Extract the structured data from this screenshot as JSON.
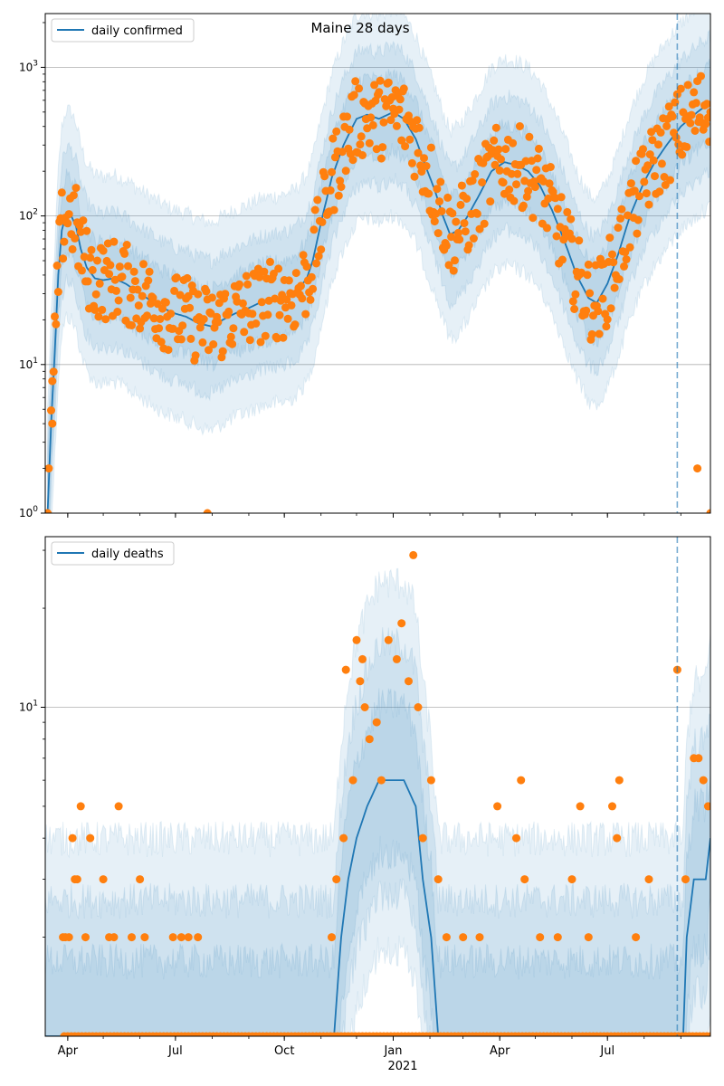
{
  "title": "Maine 28 days",
  "colors": {
    "line": "#1f77b4",
    "points": "#ff7f0e",
    "band": "#1f77b4",
    "grid": "#b0b0b0",
    "vline": "#1f77b4"
  },
  "x_axis": {
    "range": [
      "2020-03-13",
      "2021-09-26"
    ],
    "ticks": [
      {
        "date": "2020-04-01",
        "label": "Apr"
      },
      {
        "date": "2020-07-01",
        "label": "Jul"
      },
      {
        "date": "2020-10-01",
        "label": "Oct"
      },
      {
        "date": "2021-01-01",
        "label": "Jan"
      },
      {
        "date": "2021-04-01",
        "label": "Apr"
      },
      {
        "date": "2021-07-01",
        "label": "Jul"
      }
    ],
    "year_label": "2021",
    "forecast_start": "2021-08-29"
  },
  "chart_data": [
    {
      "type": "line",
      "scale": "log",
      "ylim": [
        1,
        2300
      ],
      "legend": "daily confirmed",
      "legend_loc": "top-left",
      "grid": true,
      "yticks": [
        {
          "value": 1,
          "label": "10^0"
        },
        {
          "value": 10,
          "label": "10^1"
        },
        {
          "value": 100,
          "label": "10^2"
        },
        {
          "value": 1000,
          "label": "10^3"
        }
      ],
      "line": [
        [
          "2020-03-15",
          1
        ],
        [
          "2020-03-18",
          4
        ],
        [
          "2020-03-21",
          12
        ],
        [
          "2020-03-24",
          40
        ],
        [
          "2020-03-27",
          80
        ],
        [
          "2020-03-31",
          105
        ],
        [
          "2020-04-04",
          100
        ],
        [
          "2020-04-08",
          85
        ],
        [
          "2020-04-12",
          60
        ],
        [
          "2020-04-17",
          45
        ],
        [
          "2020-04-24",
          38
        ],
        [
          "2020-05-01",
          37
        ],
        [
          "2020-05-10",
          38
        ],
        [
          "2020-05-20",
          35
        ],
        [
          "2020-06-01",
          30
        ],
        [
          "2020-06-10",
          27
        ],
        [
          "2020-06-20",
          24
        ],
        [
          "2020-07-01",
          22
        ],
        [
          "2020-07-10",
          21
        ],
        [
          "2020-07-20",
          19
        ],
        [
          "2020-08-01",
          18
        ],
        [
          "2020-08-10",
          20
        ],
        [
          "2020-08-20",
          22
        ],
        [
          "2020-09-01",
          24
        ],
        [
          "2020-09-10",
          26
        ],
        [
          "2020-09-20",
          27
        ],
        [
          "2020-10-01",
          28
        ],
        [
          "2020-10-10",
          30
        ],
        [
          "2020-10-20",
          38
        ],
        [
          "2020-10-25",
          50
        ],
        [
          "2020-11-01",
          90
        ],
        [
          "2020-11-10",
          180
        ],
        [
          "2020-11-20",
          300
        ],
        [
          "2020-12-01",
          450
        ],
        [
          "2020-12-10",
          480
        ],
        [
          "2020-12-20",
          450
        ],
        [
          "2021-01-01",
          500
        ],
        [
          "2021-01-10",
          450
        ],
        [
          "2021-01-20",
          330
        ],
        [
          "2021-01-28",
          220
        ],
        [
          "2021-02-05",
          150
        ],
        [
          "2021-02-12",
          100
        ],
        [
          "2021-02-18",
          75
        ],
        [
          "2021-02-25",
          80
        ],
        [
          "2021-03-05",
          100
        ],
        [
          "2021-03-15",
          140
        ],
        [
          "2021-03-25",
          200
        ],
        [
          "2021-04-05",
          230
        ],
        [
          "2021-04-15",
          220
        ],
        [
          "2021-04-25",
          200
        ],
        [
          "2021-05-05",
          160
        ],
        [
          "2021-05-15",
          110
        ],
        [
          "2021-05-25",
          70
        ],
        [
          "2021-06-05",
          40
        ],
        [
          "2021-06-15",
          28
        ],
        [
          "2021-06-22",
          26
        ],
        [
          "2021-07-01",
          35
        ],
        [
          "2021-07-10",
          55
        ],
        [
          "2021-07-20",
          100
        ],
        [
          "2021-08-01",
          170
        ],
        [
          "2021-08-10",
          230
        ],
        [
          "2021-08-20",
          300
        ],
        [
          "2021-09-01",
          400
        ],
        [
          "2021-09-15",
          500
        ],
        [
          "2021-09-26",
          580
        ]
      ],
      "bands": [
        {
          "lower_factor": 0.2,
          "upper_factor": 5
        },
        {
          "lower_factor": 0.35,
          "upper_factor": 2.8
        },
        {
          "lower_factor": 0.55,
          "upper_factor": 1.8
        }
      ],
      "outliers": [
        [
          "2020-03-15",
          1
        ],
        [
          "2020-03-16",
          2
        ],
        [
          "2020-03-19",
          4
        ],
        [
          "2020-07-28",
          1
        ],
        [
          "2021-09-15",
          2
        ],
        [
          "2021-09-26",
          1
        ]
      ]
    },
    {
      "type": "line",
      "scale": "log",
      "ylim": [
        1,
        33
      ],
      "legend": "daily deaths",
      "legend_loc": "top-left",
      "grid": true,
      "yticks": [
        {
          "value": 10,
          "label": "10^1"
        }
      ],
      "line": [
        [
          "2020-03-13",
          1
        ],
        [
          "2020-11-12",
          1
        ],
        [
          "2020-11-18",
          2
        ],
        [
          "2020-11-24",
          3
        ],
        [
          "2020-12-01",
          4
        ],
        [
          "2020-12-10",
          5
        ],
        [
          "2020-12-20",
          6
        ],
        [
          "2021-01-01",
          6
        ],
        [
          "2021-01-10",
          6
        ],
        [
          "2021-01-20",
          5
        ],
        [
          "2021-01-26",
          3
        ],
        [
          "2021-02-02",
          2
        ],
        [
          "2021-02-08",
          1
        ],
        [
          "2021-09-03",
          1
        ],
        [
          "2021-09-06",
          2
        ],
        [
          "2021-09-12",
          3
        ],
        [
          "2021-09-22",
          3
        ],
        [
          "2021-09-26",
          4
        ]
      ],
      "bands": [
        {
          "lower_factor": 0.3,
          "upper_factor": 4
        },
        {
          "lower_factor": 0.45,
          "upper_factor": 2.6
        },
        {
          "lower_factor": 0.6,
          "upper_factor": 1.7
        }
      ],
      "points": [
        [
          "2020-04-05",
          4
        ],
        [
          "2020-04-12",
          5
        ],
        [
          "2020-04-20",
          4
        ],
        [
          "2020-05-01",
          3
        ],
        [
          "2020-05-14",
          5
        ],
        [
          "2020-06-01",
          3
        ],
        [
          "2020-06-05",
          2
        ],
        [
          "2020-05-25",
          2
        ],
        [
          "2020-04-07",
          3
        ],
        [
          "2020-04-09",
          3
        ],
        [
          "2020-03-28",
          2
        ],
        [
          "2020-03-30",
          2
        ],
        [
          "2020-04-02",
          2
        ],
        [
          "2020-04-16",
          2
        ],
        [
          "2020-05-06",
          2
        ],
        [
          "2020-05-10",
          2
        ],
        [
          "2020-06-29",
          2
        ],
        [
          "2020-07-06",
          2
        ],
        [
          "2020-07-12",
          2
        ],
        [
          "2020-07-20",
          2
        ],
        [
          "2020-11-10",
          2
        ],
        [
          "2020-11-14",
          3
        ],
        [
          "2020-11-20",
          4
        ],
        [
          "2020-11-22",
          13
        ],
        [
          "2020-11-28",
          6
        ],
        [
          "2020-12-01",
          16
        ],
        [
          "2020-12-04",
          12
        ],
        [
          "2020-12-06",
          14
        ],
        [
          "2020-12-08",
          10
        ],
        [
          "2020-12-12",
          8
        ],
        [
          "2020-12-18",
          9
        ],
        [
          "2020-12-22",
          6
        ],
        [
          "2020-12-28",
          16
        ],
        [
          "2021-01-04",
          14
        ],
        [
          "2021-01-08",
          18
        ],
        [
          "2021-01-14",
          12
        ],
        [
          "2021-01-18",
          29
        ],
        [
          "2021-01-22",
          10
        ],
        [
          "2021-01-26",
          4
        ],
        [
          "2021-02-02",
          6
        ],
        [
          "2021-02-08",
          3
        ],
        [
          "2021-02-15",
          2
        ],
        [
          "2021-03-01",
          2
        ],
        [
          "2021-03-15",
          2
        ],
        [
          "2021-03-30",
          5
        ],
        [
          "2021-04-15",
          4
        ],
        [
          "2021-04-19",
          6
        ],
        [
          "2021-04-22",
          3
        ],
        [
          "2021-05-05",
          2
        ],
        [
          "2021-05-20",
          2
        ],
        [
          "2021-06-01",
          3
        ],
        [
          "2021-06-08",
          5
        ],
        [
          "2021-06-15",
          2
        ],
        [
          "2021-07-05",
          5
        ],
        [
          "2021-07-09",
          4
        ],
        [
          "2021-07-11",
          6
        ],
        [
          "2021-07-25",
          2
        ],
        [
          "2021-08-05",
          3
        ],
        [
          "2021-08-29",
          13
        ],
        [
          "2021-09-05",
          3
        ],
        [
          "2021-09-12",
          7
        ],
        [
          "2021-09-16",
          7
        ],
        [
          "2021-09-20",
          6
        ],
        [
          "2021-09-24",
          5
        ]
      ]
    }
  ]
}
